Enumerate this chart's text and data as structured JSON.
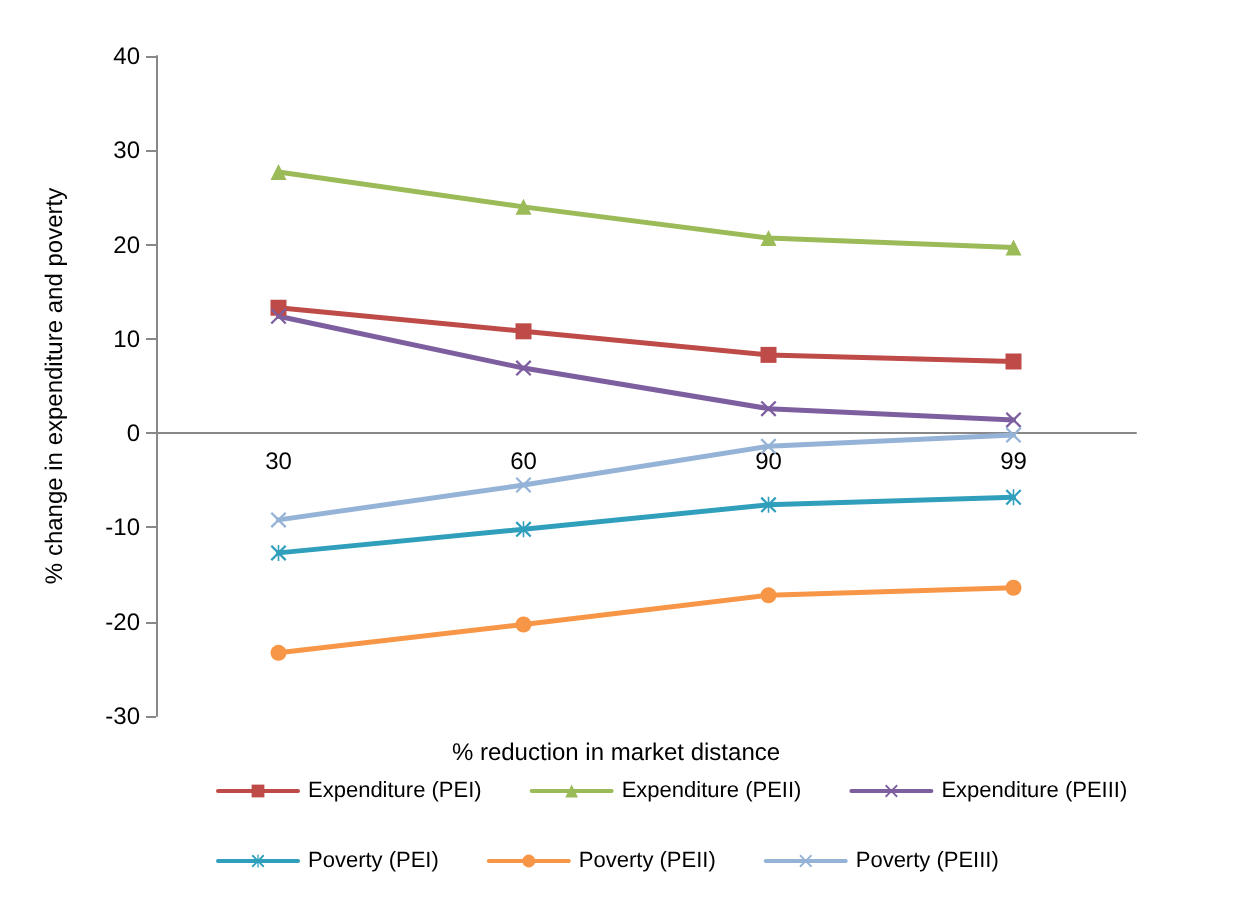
{
  "chart_data": {
    "type": "line",
    "xlabel": "% reduction in market distance",
    "ylabel": "% change in expenditure and poverty",
    "categories": [
      "30",
      "60",
      "90",
      "99"
    ],
    "series": [
      {
        "name": "Expenditure (PEI)",
        "color": "#be4b48",
        "marker": "square",
        "values": [
          13.3,
          10.8,
          8.3,
          7.6
        ]
      },
      {
        "name": "Expenditure (PEII)",
        "color": "#9bbb59",
        "marker": "triangle",
        "values": [
          27.7,
          24,
          20.7,
          19.7
        ]
      },
      {
        "name": "Expenditure (PEIII)",
        "color": "#7d5fa0",
        "marker": "cross",
        "values": [
          12.4,
          6.9,
          2.6,
          1.4
        ]
      },
      {
        "name": "Poverty (PEI)",
        "color": "#2f9fbb",
        "marker": "star",
        "values": [
          -12.7,
          -10.2,
          -7.6,
          -6.8
        ]
      },
      {
        "name": "Poverty (PEII)",
        "color": "#f79646",
        "marker": "circle",
        "values": [
          -23.3,
          -20.3,
          -17.2,
          -16.4
        ]
      },
      {
        "name": "Poverty (PEIII)",
        "color": "#95b3d7",
        "marker": "cross",
        "values": [
          -9.2,
          -5.5,
          -1.4,
          -0.2
        ]
      }
    ],
    "ylim": [
      -30,
      40
    ],
    "yticks": [
      -30,
      -20,
      -10,
      0,
      10,
      20,
      30,
      40
    ],
    "grid": false,
    "legend": "bottom",
    "line_style": "solid"
  }
}
